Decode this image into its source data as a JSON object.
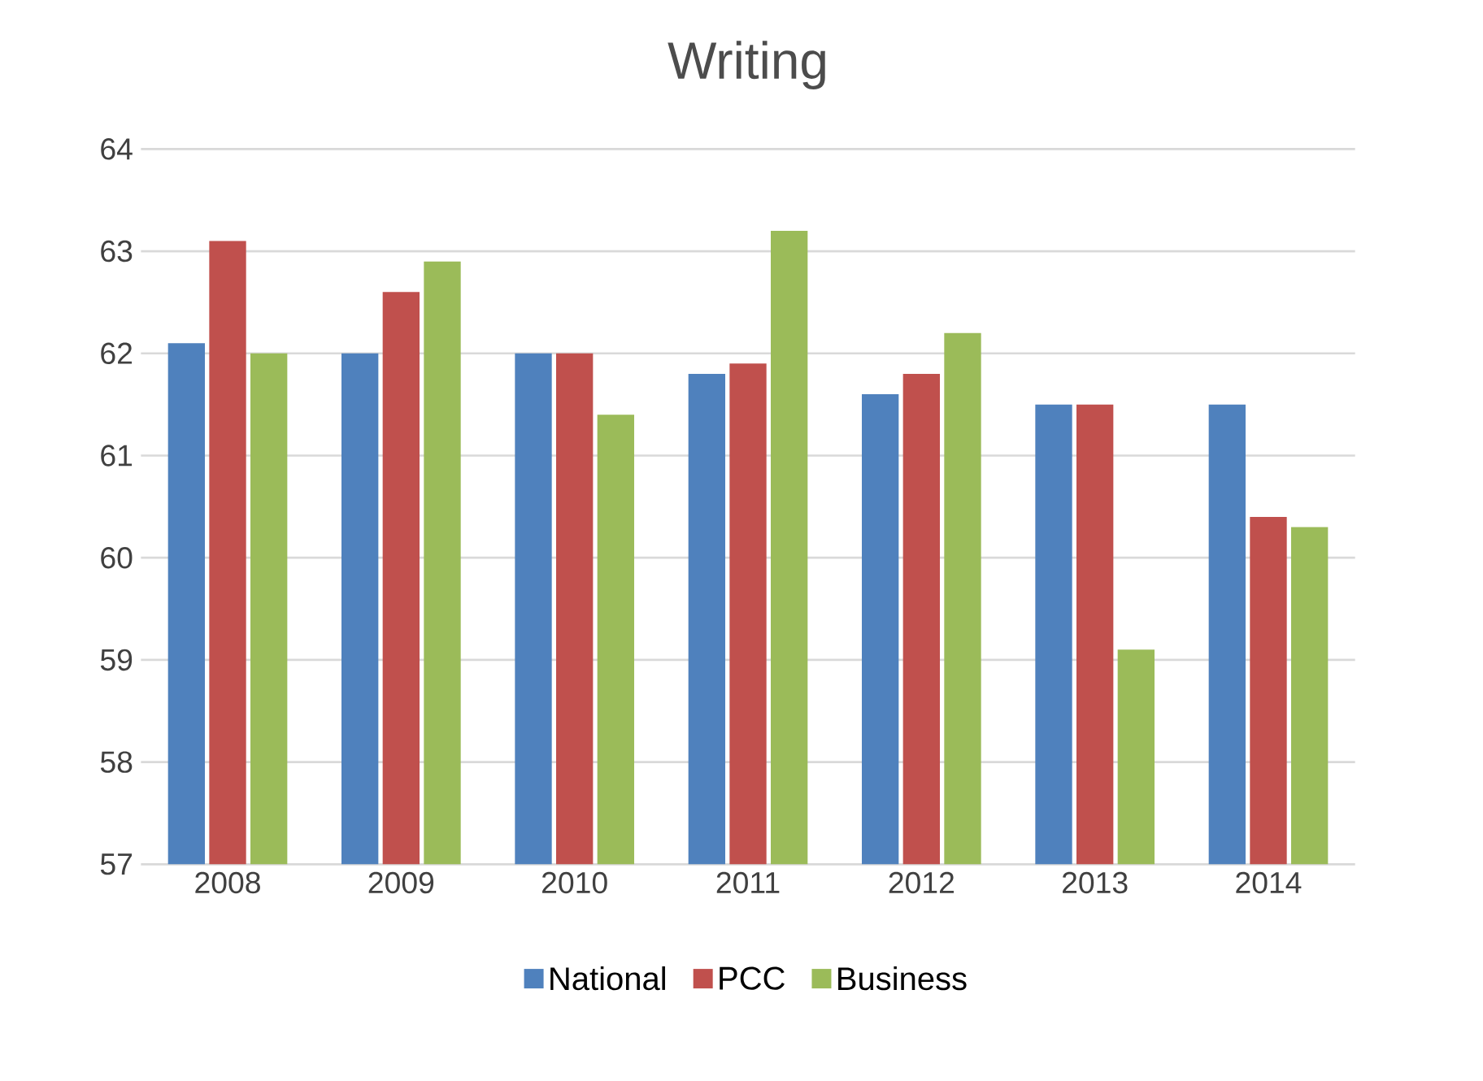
{
  "chart_data": {
    "type": "bar",
    "title": "Writing",
    "categories": [
      "2008",
      "2009",
      "2010",
      "2011",
      "2012",
      "2013",
      "2014"
    ],
    "series": [
      {
        "name": "National",
        "color": "#4f81bd",
        "values": [
          62.1,
          62.0,
          62.0,
          61.8,
          61.6,
          61.5,
          61.5
        ]
      },
      {
        "name": "PCC",
        "color": "#c0504d",
        "values": [
          63.1,
          62.6,
          62.0,
          61.9,
          61.8,
          61.5,
          60.4
        ]
      },
      {
        "name": "Business",
        "color": "#9bbb59",
        "values": [
          62.0,
          62.9,
          61.4,
          63.2,
          62.2,
          59.1,
          60.3
        ]
      }
    ],
    "ylim": [
      57,
      64
    ],
    "yticks": [
      57,
      58,
      59,
      60,
      61,
      62,
      63,
      64
    ],
    "grid": "y",
    "legend": "bottom"
  }
}
